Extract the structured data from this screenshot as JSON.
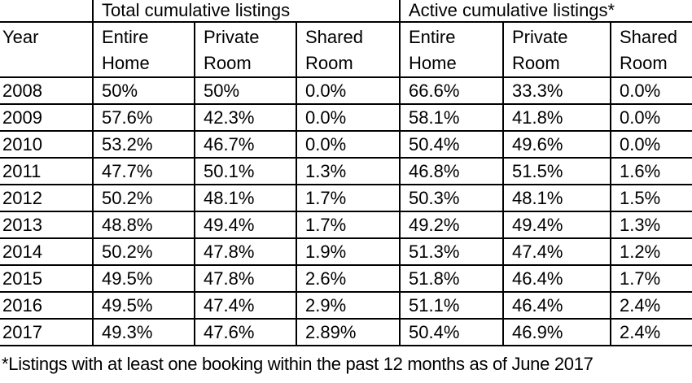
{
  "page": {
    "background": "#ffffff",
    "text_color": "#000000",
    "border_color": "#000000"
  },
  "chart_data": {
    "type": "table",
    "title": "",
    "group_headers": [
      "Total cumulative listings",
      "Active cumulative listings*"
    ],
    "columns": [
      "Year",
      "Entire Home",
      "Private Room",
      "Shared Room",
      "Entire Home",
      "Private Room",
      "Shared Room"
    ],
    "header_cells_display": [
      "Year",
      "Entire\nHome",
      "Private\nRoom",
      "Shared\nRoom",
      "Entire\nHome",
      "Private\nRoom",
      "Shared\nRoom"
    ],
    "rows": [
      [
        "2008",
        "50%",
        "50%",
        "0.0%",
        "66.6%",
        "33.3%",
        "0.0%"
      ],
      [
        "2009",
        "57.6%",
        "42.3%",
        "0.0%",
        "58.1%",
        "41.8%",
        "0.0%"
      ],
      [
        "2010",
        "53.2%",
        "46.7%",
        "0.0%",
        "50.4%",
        "49.6%",
        "0.0%"
      ],
      [
        "2011",
        "47.7%",
        "50.1%",
        "1.3%",
        "46.8%",
        "51.5%",
        "1.6%"
      ],
      [
        "2012",
        "50.2%",
        "48.1%",
        "1.7%",
        "50.3%",
        "48.1%",
        "1.5%"
      ],
      [
        "2013",
        "48.8%",
        "49.4%",
        "1.7%",
        "49.2%",
        "49.4%",
        "1.3%"
      ],
      [
        "2014",
        "50.2%",
        "47.8%",
        "1.9%",
        "51.3%",
        "47.4%",
        "1.2%"
      ],
      [
        "2015",
        "49.5%",
        "47.8%",
        "2.6%",
        "51.8%",
        "46.4%",
        "1.7%"
      ],
      [
        "2016",
        "49.5%",
        "47.4%",
        "2.9%",
        "51.1%",
        "46.4%",
        "2.4%"
      ],
      [
        "2017",
        "49.3%",
        "47.6%",
        "2.89%",
        "50.4%",
        "46.9%",
        "2.4%"
      ]
    ],
    "footnote": "*Listings with at least one booking within the past 12 months as of June 2017"
  }
}
